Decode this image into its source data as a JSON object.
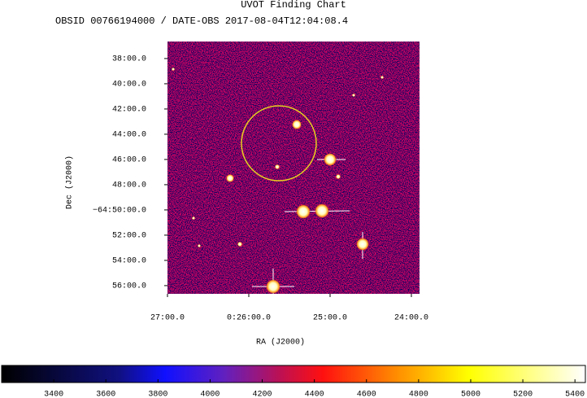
{
  "chart_data": {
    "type": "image",
    "title": "UVOT Finding Chart",
    "subtitle": "OBSID 00766194000 / DATE-OBS 2017-08-04T12:04:08.4",
    "xlabel": "RA (J2000)",
    "ylabel": "Dec (J2000)",
    "xlim": [
      27.0,
      23.9
    ],
    "xticks": [
      {
        "value": 27,
        "label": "27:00.0"
      },
      {
        "value": 26,
        "label": "0:26:00.0"
      },
      {
        "value": 25,
        "label": "25:00.0"
      },
      {
        "value": 24,
        "label": "24:00.0"
      }
    ],
    "ylim": [
      56.65,
      36.65
    ],
    "yticks": [
      {
        "value": 38,
        "label": "38:00.0"
      },
      {
        "value": 40,
        "label": "40:00.0"
      },
      {
        "value": 42,
        "label": "42:00.0"
      },
      {
        "value": 44,
        "label": "44:00.0"
      },
      {
        "value": 46,
        "label": "46:00.0"
      },
      {
        "value": 48,
        "label": "48:00.0"
      },
      {
        "value": 50,
        "label": "−64:50:00.0"
      },
      {
        "value": 52,
        "label": "52:00.0"
      },
      {
        "value": 54,
        "label": "54:00.0"
      },
      {
        "value": 56,
        "label": "56:00.0"
      }
    ],
    "clim": [
      3200,
      5440
    ],
    "cticks": [
      3400,
      3600,
      3800,
      4000,
      4200,
      4400,
      4600,
      4800,
      5000,
      5200,
      5400
    ]
  }
}
